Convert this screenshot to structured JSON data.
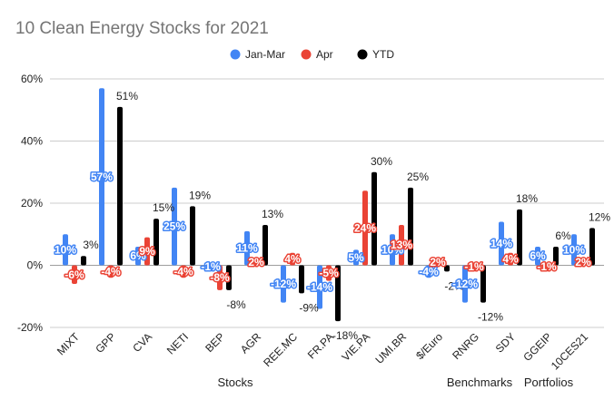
{
  "chart_data": {
    "type": "bar",
    "title": "10 Clean Energy Stocks for 2021",
    "categories": [
      "MIXT",
      "GPP",
      "CVA",
      "NETI",
      "BEP",
      "AGR",
      "REE.MC",
      "FR.PA",
      "VIE.PA",
      "UMI.BR",
      "$/Euro",
      "RNRG",
      "SDY",
      "GGEIP",
      "10CES21"
    ],
    "series": [
      {
        "name": "Jan-Mar",
        "color": "#4285f4",
        "values": [
          10,
          57,
          6,
          25,
          -1,
          11,
          -12,
          -14,
          5,
          10,
          -4,
          -12,
          14,
          6,
          10
        ]
      },
      {
        "name": "Apr",
        "color": "#ea4335",
        "values": [
          -6,
          -4,
          9,
          -4,
          -8,
          2,
          4,
          -5,
          24,
          13,
          2,
          -1,
          4,
          -1,
          2
        ]
      },
      {
        "name": "YTD",
        "color": "#000000",
        "values": [
          3,
          51,
          15,
          19,
          -8,
          13,
          -9,
          -18,
          30,
          25,
          -2,
          -12,
          18,
          6,
          12
        ]
      }
    ],
    "data_labels": {
      "Jan-Mar": [
        "10%",
        "57%",
        "6%",
        "25%",
        "-1%",
        "11%",
        "-12%",
        "-14%",
        "5%",
        "10%",
        "-4%",
        "-12%",
        "14%",
        "6%",
        "10%"
      ],
      "Apr": [
        "-6%",
        "-4%",
        "9%",
        "-4%",
        "-8%",
        "2%",
        "4%",
        "-5%",
        "24%",
        "13%",
        "2%",
        "-1%",
        "4%",
        "-1%",
        "2%"
      ],
      "YTD": [
        "3%",
        "51%",
        "15%",
        "19%",
        "-8%",
        "13%",
        "-9%",
        "-18%",
        "30%",
        "25%",
        "-2%",
        "-12%",
        "18%",
        "6%",
        "12%"
      ]
    },
    "ylim": [
      -20,
      60
    ],
    "yticks": [
      -20,
      0,
      20,
      40,
      60
    ],
    "ytick_labels": [
      "-20%",
      "0%",
      "20%",
      "40%",
      "60%"
    ],
    "category_groups": [
      "Stocks",
      "Benchmarks",
      "Portfolios"
    ],
    "legend_position": "top-center",
    "grid": true
  }
}
